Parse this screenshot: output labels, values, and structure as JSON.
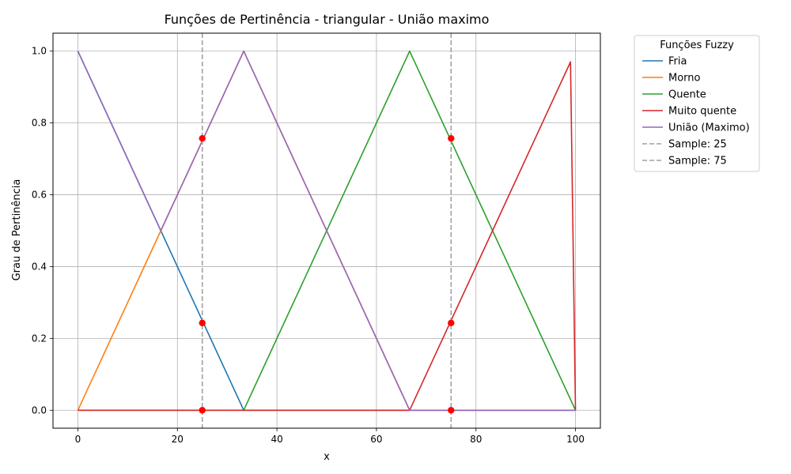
{
  "chart_data": {
    "type": "line",
    "title": "Funções de Pertinência - triangular - União maximo",
    "xlabel": "x",
    "ylabel": "Grau de Pertinência",
    "xlim": [
      -5,
      105
    ],
    "ylim": [
      -0.05,
      1.05
    ],
    "xticks": [
      0,
      20,
      40,
      60,
      80,
      100
    ],
    "yticks": [
      0.0,
      0.2,
      0.4,
      0.6,
      0.8,
      1.0
    ],
    "xtick_labels": [
      "0",
      "20",
      "40",
      "60",
      "80",
      "100"
    ],
    "ytick_labels": [
      "0.0",
      "0.2",
      "0.4",
      "0.6",
      "0.8",
      "1.0"
    ],
    "grid": true,
    "legend": {
      "title": "Funções Fuzzy",
      "placement": "outside-right"
    },
    "series": [
      {
        "name": "Fria",
        "color": "#1f77b4",
        "style": "solid",
        "x": [
          0,
          33.33,
          100
        ],
        "y": [
          1.0,
          0.0,
          0.0
        ]
      },
      {
        "name": "Morno",
        "color": "#ff7f0e",
        "style": "solid",
        "x": [
          0,
          16.67,
          33.33,
          66.67,
          100
        ],
        "y": [
          0.0,
          0.5,
          1.0,
          0.0,
          0.0
        ]
      },
      {
        "name": "Quente",
        "color": "#2ca02c",
        "style": "solid",
        "x": [
          0,
          33.33,
          66.67,
          100
        ],
        "y": [
          0.0,
          0.0,
          1.0,
          0.0
        ]
      },
      {
        "name": "Muito quente",
        "color": "#d62728",
        "style": "solid",
        "x": [
          0,
          66.67,
          99,
          100
        ],
        "y": [
          0.0,
          0.0,
          0.97,
          0.0
        ]
      },
      {
        "name": "União (Maximo)",
        "color": "#9467bd",
        "style": "solid",
        "x": [
          0,
          16.67,
          33.33,
          66.67,
          100
        ],
        "y": [
          1.0,
          0.5,
          1.0,
          0.0,
          0.0
        ]
      },
      {
        "name": "Sample: 25",
        "color": "#a0a0a0",
        "style": "dashed",
        "vline": 25
      },
      {
        "name": "Sample: 75",
        "color": "#a0a0a0",
        "style": "dashed",
        "vline": 75
      }
    ],
    "sample_points": {
      "color": "#ff0000",
      "points": [
        {
          "x": 25,
          "y": 0.757
        },
        {
          "x": 25,
          "y": 0.243
        },
        {
          "x": 25,
          "y": 0.0
        },
        {
          "x": 75,
          "y": 0.757
        },
        {
          "x": 75,
          "y": 0.243
        },
        {
          "x": 75,
          "y": 0.0
        }
      ]
    }
  }
}
